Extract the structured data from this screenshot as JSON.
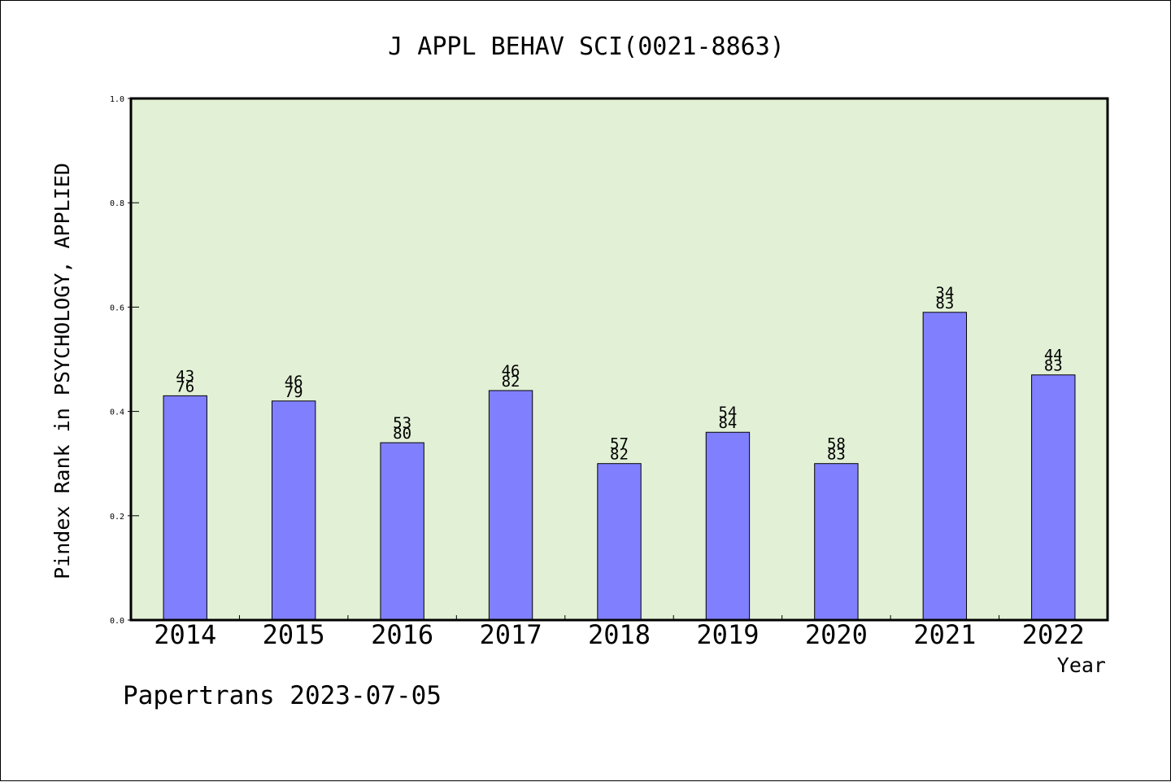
{
  "chart_data": {
    "type": "bar",
    "title": "J APPL BEHAV SCI(0021-8863)",
    "xlabel": "Year",
    "ylabel": "Pindex Rank in PSYCHOLOGY, APPLIED",
    "ylim": [
      0,
      1.0
    ],
    "yticks": [
      "0.0",
      "0.2",
      "0.4",
      "0.6",
      "0.8",
      "1.0"
    ],
    "grid": false,
    "categories": [
      "2014",
      "2015",
      "2016",
      "2017",
      "2018",
      "2019",
      "2020",
      "2021",
      "2022"
    ],
    "values": [
      0.43,
      0.42,
      0.34,
      0.44,
      0.3,
      0.36,
      0.3,
      0.59,
      0.47
    ],
    "bar_labels": [
      {
        "rank": "43",
        "total": "76"
      },
      {
        "rank": "46",
        "total": "79"
      },
      {
        "rank": "53",
        "total": "80"
      },
      {
        "rank": "46",
        "total": "82"
      },
      {
        "rank": "57",
        "total": "82"
      },
      {
        "rank": "54",
        "total": "84"
      },
      {
        "rank": "58",
        "total": "83"
      },
      {
        "rank": "34",
        "total": "83"
      },
      {
        "rank": "44",
        "total": "83"
      }
    ],
    "colors": {
      "bar": "#8080ff",
      "plot_background": "#e2f0d6",
      "axis": "#000000"
    }
  },
  "footer": "Papertrans 2023-07-05"
}
